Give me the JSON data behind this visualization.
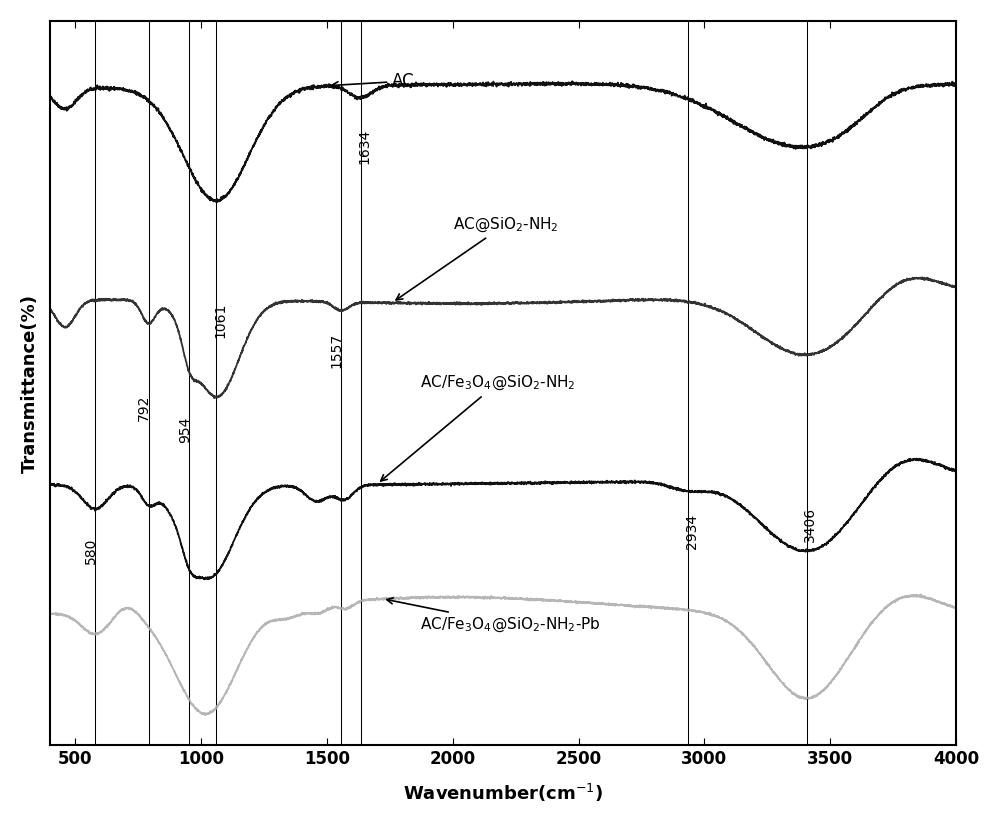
{
  "xlabel": "Wavenumber(cm$^{-1}$)",
  "ylabel": "Transmittance(%)",
  "xlim": [
    400,
    4000
  ],
  "xticks": [
    500,
    1000,
    1500,
    2000,
    2500,
    3000,
    3500,
    4000
  ],
  "background_color": "#ffffff",
  "vlines": [
    580,
    792,
    954,
    1061,
    1557,
    1634,
    2934,
    3406
  ],
  "vline_labels": [
    "580",
    "792",
    "954",
    "1061",
    "1557",
    "1634",
    "2934",
    "3406"
  ],
  "series_colors": [
    "#111111",
    "#333333",
    "#111111",
    "#aaaaaa"
  ],
  "series_offsets": [
    0.68,
    0.42,
    0.18,
    0.0
  ],
  "line_width": 1.3,
  "noise_seed": 42
}
